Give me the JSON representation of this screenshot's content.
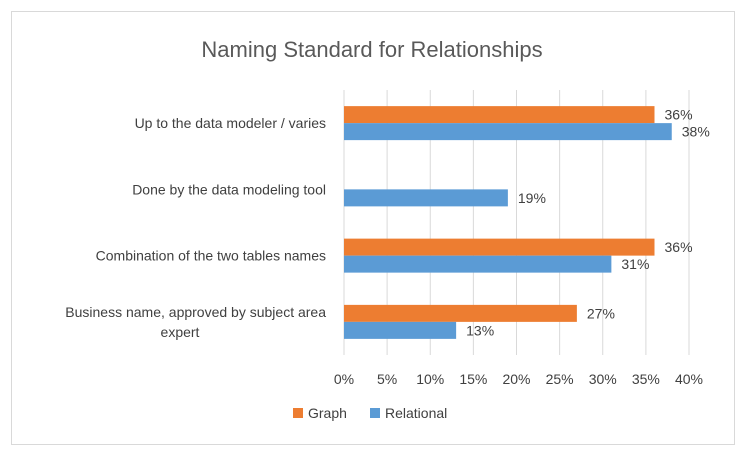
{
  "chart_data": {
    "type": "bar",
    "orientation": "horizontal",
    "title": "Naming Standard for Relationships",
    "categories": [
      [
        "Up to the data modeler / varies"
      ],
      [
        "Done by the data modeling tool"
      ],
      [
        "Combination of the two tables names"
      ],
      [
        "Business name, approved by subject area",
        "expert"
      ]
    ],
    "series": [
      {
        "name": "Graph",
        "color": "#ed7d31",
        "values": [
          36,
          null,
          36,
          27
        ],
        "labels": [
          "36%",
          "",
          "36%",
          "27%"
        ]
      },
      {
        "name": "Relational",
        "color": "#5b9bd5",
        "values": [
          38,
          19,
          31,
          13
        ],
        "labels": [
          "38%",
          "19%",
          "31%",
          "13%"
        ]
      }
    ],
    "xlim": [
      0,
      40
    ],
    "xticks": [
      "0%",
      "5%",
      "10%",
      "15%",
      "20%",
      "25%",
      "30%",
      "35%",
      "40%"
    ],
    "gridlines": true,
    "legend_position": "bottom",
    "xlabel": "",
    "ylabel": ""
  }
}
